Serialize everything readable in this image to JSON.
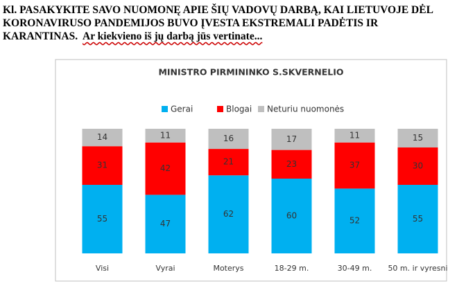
{
  "header": {
    "lines": [
      "Kl. PASAKYKITE SAVO NUOMONĘ APIE ŠIŲ VADOVŲ DARBĄ, KAI LIETUVOJE DĖL",
      "KORONAVIRUSO PANDEMIJOS BUVO ĮVESTA EKSTREMALI PADĖTIS IR",
      "KARANTINAS."
    ],
    "question": "Ar kiekvieno iš jų darbą jūs vertinate..."
  },
  "chart_data": {
    "type": "stacked-bar",
    "title": "MINISTRO PIRMININKO  S.SKVERNELIO",
    "categories": [
      "Visi",
      "Vyrai",
      "Moterys",
      "18-29 m.",
      "30-49 m.",
      "50 m. ir vyresni"
    ],
    "series": [
      {
        "name": "Gerai",
        "color": "#00b0f0",
        "values": [
          55,
          47,
          62,
          60,
          52,
          55
        ]
      },
      {
        "name": "Blogai",
        "color": "#ff0000",
        "values": [
          31,
          42,
          21,
          23,
          37,
          30
        ]
      },
      {
        "name": "Neturiu nuomonės",
        "color": "#bfbfbf",
        "values": [
          14,
          11,
          16,
          17,
          11,
          15
        ]
      }
    ]
  }
}
